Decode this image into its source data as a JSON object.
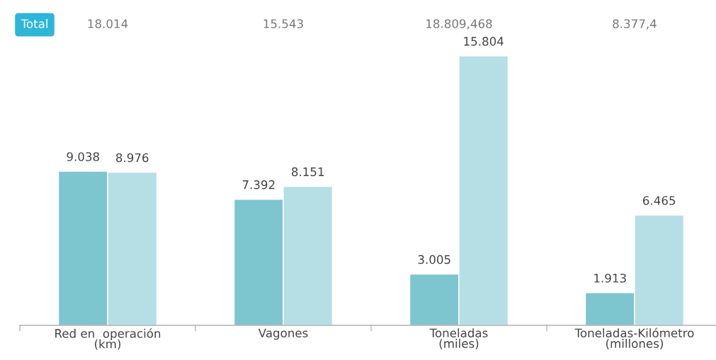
{
  "chart_data": {
    "type": "bar",
    "categories": [
      "Red en  operación\n(km)",
      "Vagones",
      "Toneladas\n(miles)",
      "Toneladas-Kilómetro\n(millones)"
    ],
    "series": [
      {
        "color": "#7dc5cf",
        "values": [
          9038,
          7392,
          3005,
          1913
        ],
        "value_labels": [
          "9.038",
          "7.392",
          "3.005",
          "1.913"
        ]
      },
      {
        "color": "#b5dfe5",
        "values": [
          8976,
          8151,
          15804,
          6465
        ],
        "value_labels": [
          "8.976",
          "8.151",
          "15.804",
          "6.465"
        ]
      }
    ],
    "annotations": [
      "Total",
      "18.014",
      "15.543",
      "18.809,468",
      "8.377,4"
    ],
    "grid": false,
    "legend": false
  }
}
